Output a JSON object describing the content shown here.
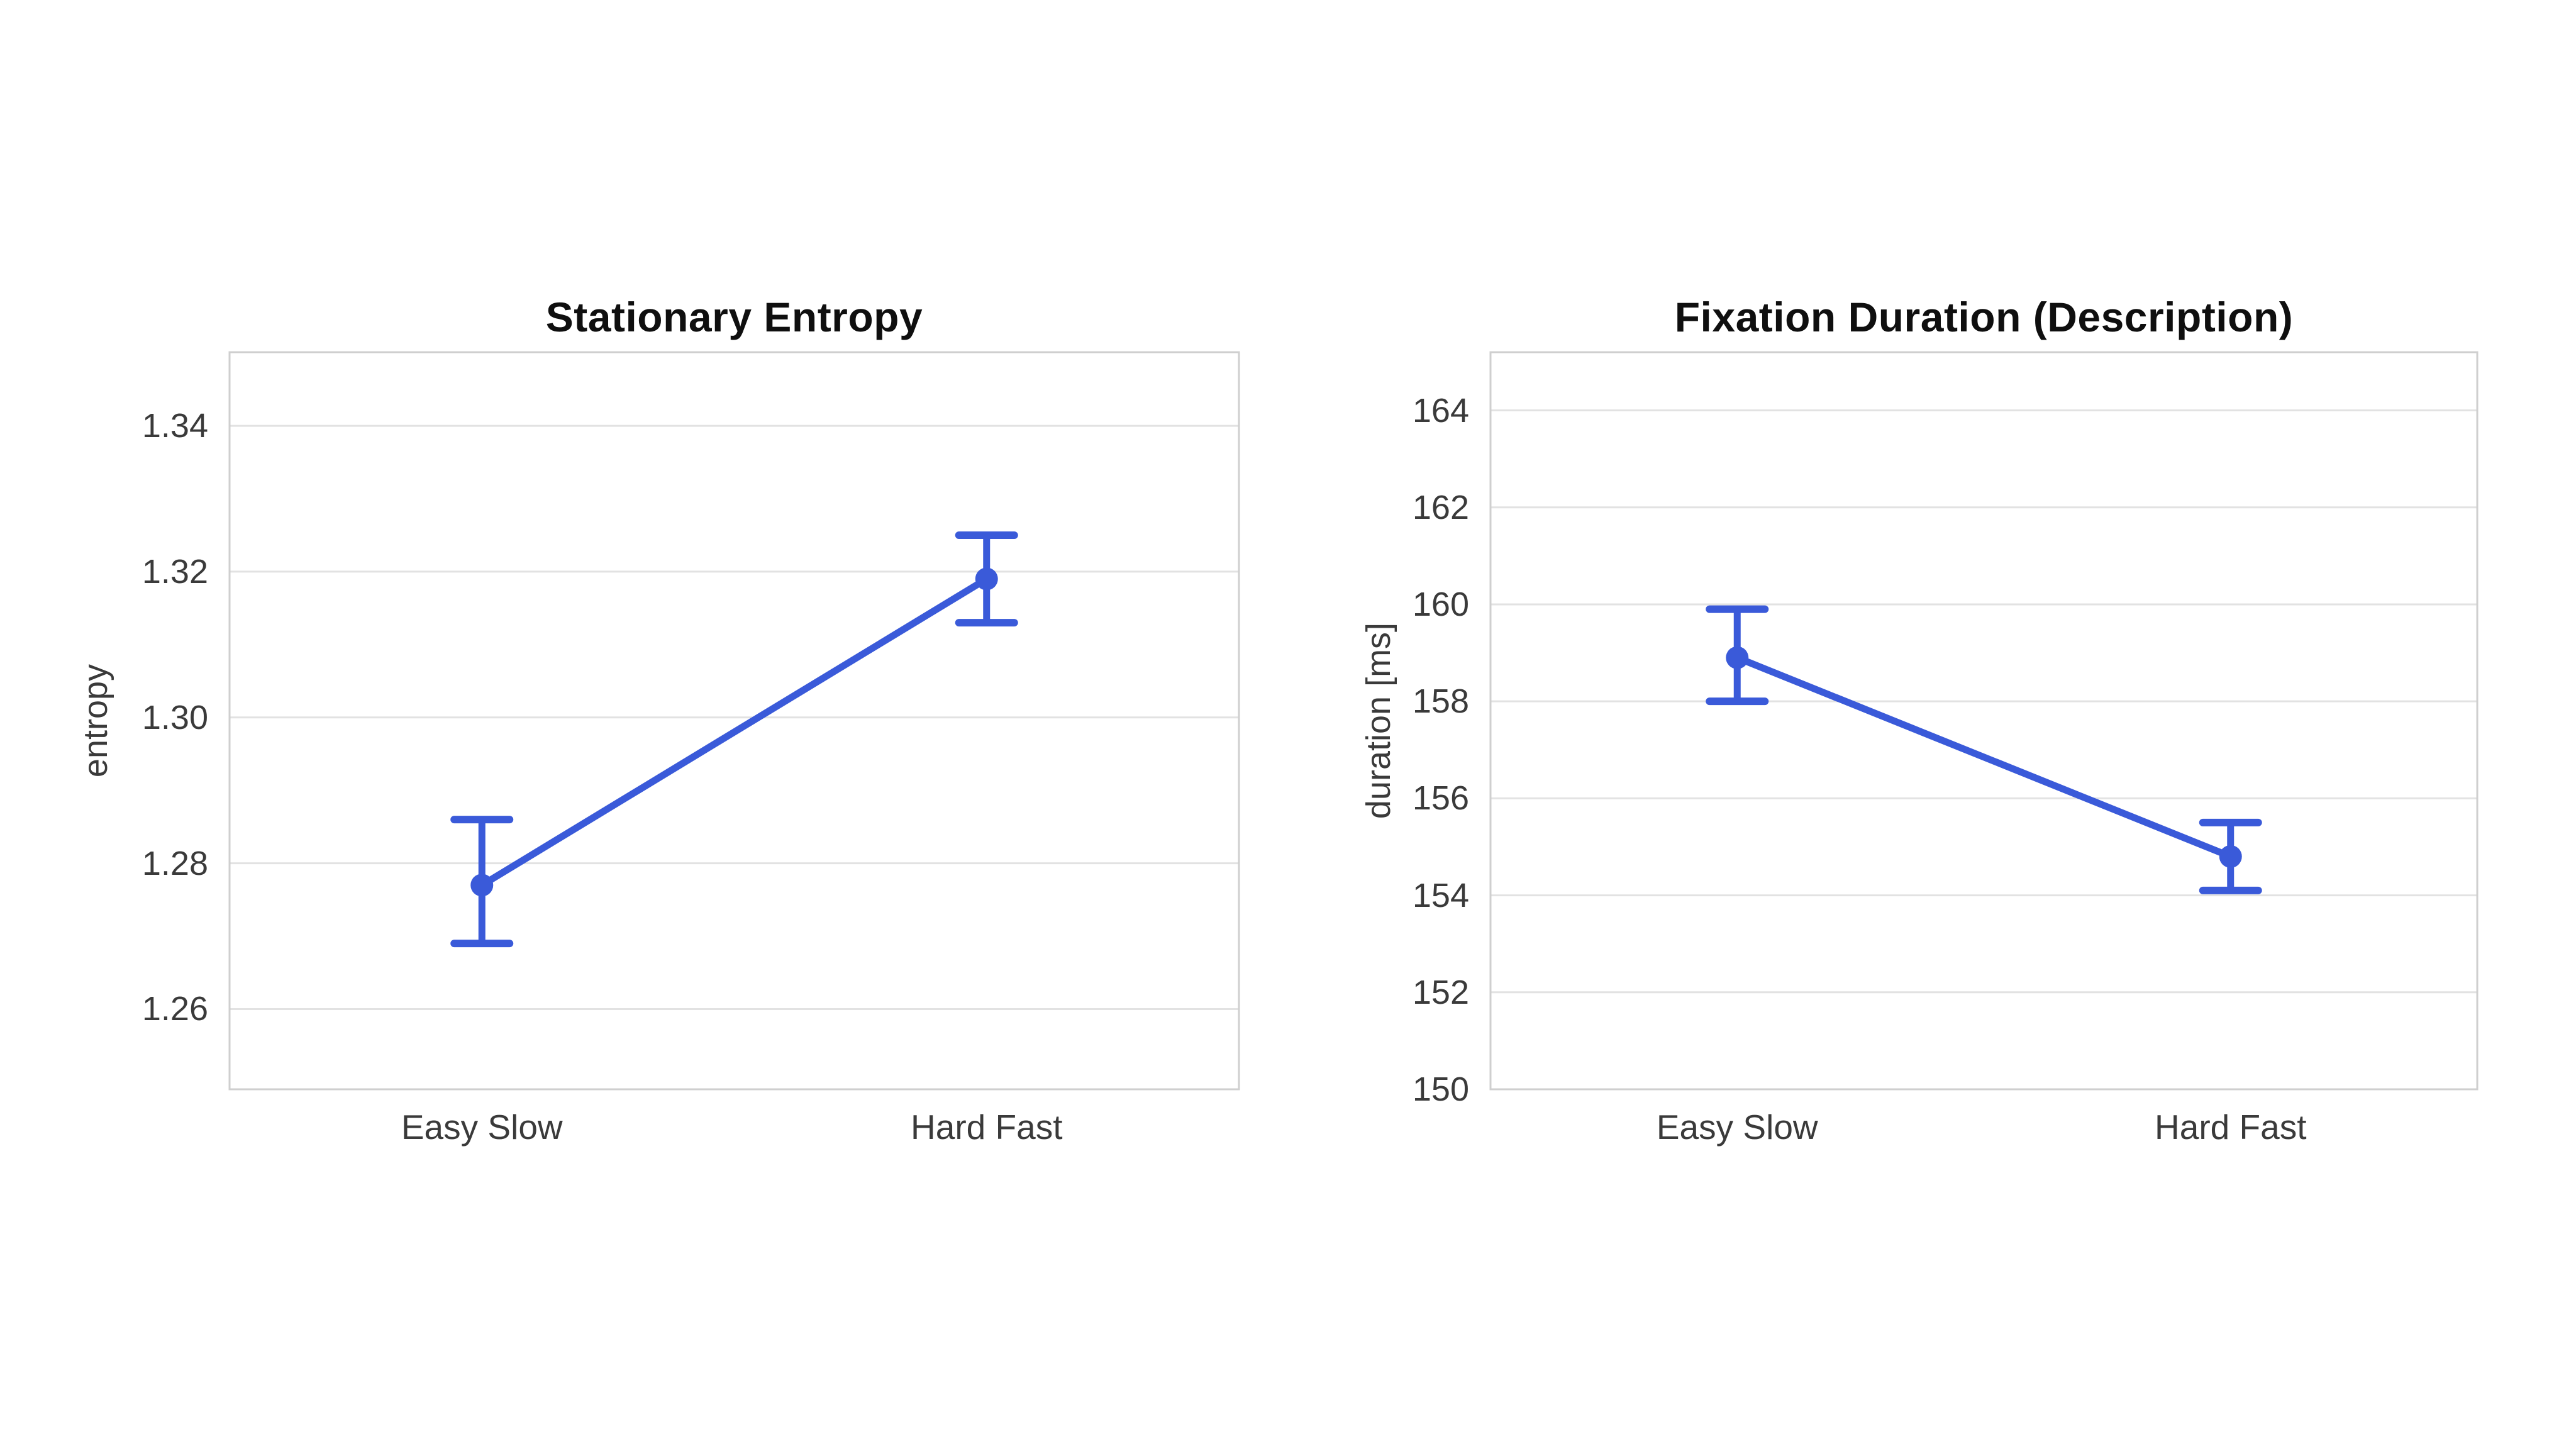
{
  "page": {
    "background_color": "#ffffff"
  },
  "style": {
    "accent_color": "#3a5ad9",
    "grid_color": "#e2e2e2",
    "plot_border_color": "#cfcfcf",
    "tick_text_color": "#3a3a3a",
    "title_color": "#0f0f0f"
  },
  "chart_data": [
    {
      "type": "line",
      "title": "Stationary Entropy",
      "xlabel": "",
      "ylabel": "entropy",
      "categories": [
        "Easy Slow",
        "Hard Fast"
      ],
      "series": [
        {
          "name": "Stationary Entropy",
          "values": [
            1.277,
            1.319
          ],
          "error_upper": [
            1.286,
            1.325
          ],
          "error_lower": [
            1.269,
            1.313
          ]
        }
      ],
      "ylim": [
        1.249,
        1.3501
      ],
      "y_tick_labels": [
        "1.26",
        "1.28",
        "1.30",
        "1.32",
        "1.34"
      ],
      "y_tick_values": [
        1.26,
        1.28,
        1.3,
        1.32,
        1.34
      ],
      "grid": true,
      "legend": false,
      "marker": "circle",
      "error_bars": true
    },
    {
      "type": "line",
      "title": "Fixation Duration (Description)",
      "xlabel": "",
      "ylabel": "duration [ms]",
      "categories": [
        "Easy Slow",
        "Hard Fast"
      ],
      "series": [
        {
          "name": "Fixation Duration",
          "values": [
            158.9,
            154.8
          ],
          "error_upper": [
            159.9,
            155.5
          ],
          "error_lower": [
            158.0,
            154.1
          ]
        }
      ],
      "ylim": [
        150,
        165.2
      ],
      "y_tick_labels": [
        "150",
        "152",
        "154",
        "156",
        "158",
        "160",
        "162",
        "164"
      ],
      "y_tick_values": [
        150,
        152,
        154,
        156,
        158,
        160,
        162,
        164
      ],
      "grid": true,
      "legend": false,
      "marker": "circle",
      "error_bars": true
    }
  ]
}
